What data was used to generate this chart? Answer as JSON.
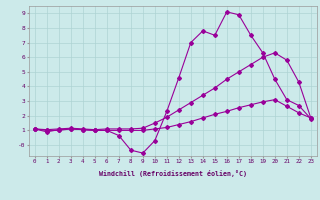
{
  "xlabel": "Windchill (Refroidissement éolien,°C)",
  "bg_color": "#cceaea",
  "line_color": "#990099",
  "xlim": [
    -0.5,
    23.5
  ],
  "ylim": [
    -0.75,
    9.5
  ],
  "xticks": [
    0,
    1,
    2,
    3,
    4,
    5,
    6,
    7,
    8,
    9,
    10,
    11,
    12,
    13,
    14,
    15,
    16,
    17,
    18,
    19,
    20,
    21,
    22,
    23
  ],
  "yticks": [
    0,
    1,
    2,
    3,
    4,
    5,
    6,
    7,
    8,
    9
  ],
  "ytick_labels": [
    "-0",
    "1",
    "2",
    "3",
    "4",
    "5",
    "6",
    "7",
    "8",
    "9"
  ],
  "line1_x": [
    0,
    1,
    2,
    3,
    4,
    5,
    6,
    7,
    8,
    9,
    10,
    11,
    12,
    13,
    14,
    15,
    16,
    17,
    18,
    19,
    20,
    21,
    22,
    23
  ],
  "line1_y": [
    1.1,
    0.9,
    1.05,
    1.1,
    1.05,
    1.0,
    1.0,
    0.65,
    -0.35,
    -0.55,
    0.3,
    2.3,
    4.6,
    7.0,
    7.8,
    7.5,
    9.1,
    8.9,
    7.5,
    6.3,
    4.5,
    3.1,
    2.7,
    1.8
  ],
  "line2_x": [
    0,
    1,
    2,
    3,
    4,
    5,
    6,
    7,
    8,
    9,
    10,
    11,
    12,
    13,
    14,
    15,
    16,
    17,
    18,
    19,
    20,
    21,
    22,
    23
  ],
  "line2_y": [
    1.1,
    1.05,
    1.1,
    1.15,
    1.1,
    1.05,
    1.1,
    1.1,
    1.1,
    1.15,
    1.5,
    1.9,
    2.4,
    2.9,
    3.4,
    3.9,
    4.5,
    5.0,
    5.5,
    6.0,
    6.3,
    5.8,
    4.3,
    1.85
  ],
  "line3_x": [
    0,
    1,
    2,
    3,
    4,
    5,
    6,
    7,
    8,
    9,
    10,
    11,
    12,
    13,
    14,
    15,
    16,
    17,
    18,
    19,
    20,
    21,
    22,
    23
  ],
  "line3_y": [
    1.1,
    1.0,
    1.0,
    1.1,
    1.05,
    1.0,
    1.0,
    1.0,
    1.0,
    1.0,
    1.1,
    1.2,
    1.4,
    1.6,
    1.85,
    2.1,
    2.3,
    2.55,
    2.75,
    2.95,
    3.1,
    2.65,
    2.2,
    1.85
  ]
}
